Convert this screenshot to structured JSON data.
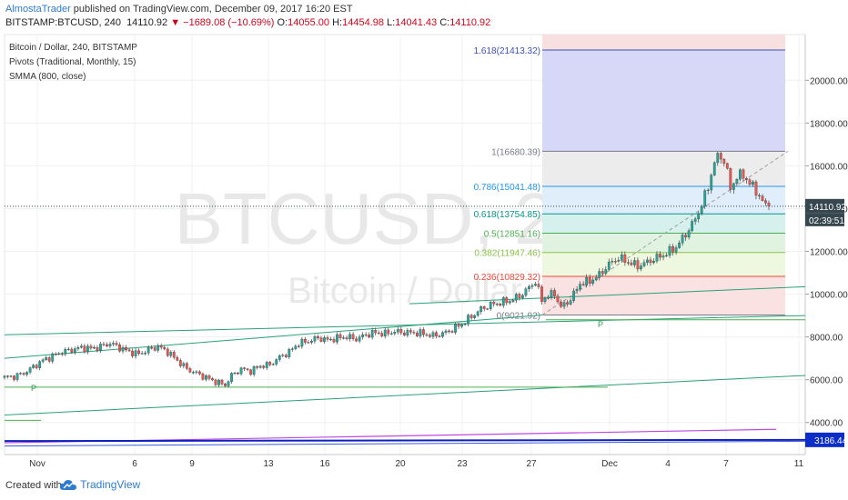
{
  "header": {
    "author": "AlmostaTrader",
    "published_text": " published on TradingView.com, December 09, 2017 16:20 EST",
    "symbol": "BITSTAMP:BTCUSD, 240",
    "last": "14110.92",
    "change": "▼ −1689.08 (−10.69%)",
    "o_label": "O:",
    "o_value": "14055.00",
    "h_label": "H:",
    "h_value": "14454.98",
    "l_label": "L:",
    "l_value": "14041.43",
    "c_label": "C:",
    "c_value": "14110.92"
  },
  "legend": {
    "title": "Bitcoin / Dollar, 240, BITSTAMP",
    "pivots": "Pivots (Traditional, Monthly, 15)",
    "smma": "SMMA (800, close)"
  },
  "watermark": {
    "symbol": "BTCUSD, 240",
    "name": "Bitcoin / Dollar"
  },
  "footer": {
    "created_with": "Created with",
    "brand": "TradingView"
  },
  "colors": {
    "up": "#26a69a",
    "down": "#ef5350",
    "fib_dashed": "#9e9e9e",
    "channel": "#2aa07a",
    "pivot": "#4caf50",
    "smma": "#c046e0",
    "blue_line": "#1020c0",
    "price_label_bg": "#37474f",
    "blue_label_bg": "#0d2dc9"
  },
  "price_labels": {
    "last": "14110.92",
    "countdown": "02:39:51",
    "blue": "3186.44"
  },
  "pivot_markers": [
    "P",
    "P"
  ],
  "chart_data": {
    "type": "candlestick",
    "y_axis": {
      "ticks": [
        4000,
        6000,
        8000,
        10000,
        12000,
        14000,
        16000,
        18000,
        20000
      ],
      "tick_labels": [
        "4000.00",
        "6000.00",
        "8000.00",
        "10000.00",
        "12000.00",
        "14000.00",
        "16000.00",
        "18000.00",
        "20000.00"
      ]
    },
    "x_axis": {
      "ticks": [
        "Nov",
        "6",
        "9",
        "13",
        "16",
        "20",
        "23",
        "27",
        "Dec",
        "4",
        "7",
        "11"
      ]
    },
    "fibonacci": [
      {
        "level": "1.618",
        "price": 21413.32,
        "label": "1.618(21413.32)",
        "color": "#3f51b5"
      },
      {
        "level": "1",
        "price": 16680.39,
        "label": "1(16680.39)",
        "color": "#787b86"
      },
      {
        "level": "0.786",
        "price": 15041.48,
        "label": "0.786(15041.48)",
        "color": "#2196f3"
      },
      {
        "level": "0.618",
        "price": 13754.85,
        "label": "0.618(13754.85)",
        "color": "#009688"
      },
      {
        "level": "0.5",
        "price": 12851.16,
        "label": "0.5(12851.16)",
        "color": "#4caf50"
      },
      {
        "level": "0.382",
        "price": 11947.46,
        "label": "0.382(11947.46)",
        "color": "#8bc34a"
      },
      {
        "level": "0.236",
        "price": 10829.32,
        "label": "0.236(10829.32)",
        "color": "#f44336"
      },
      {
        "level": "0",
        "price": 9021.92,
        "label": "0(9021.92)",
        "color": "#787b86"
      }
    ],
    "last_price": 14110.92,
    "close_path": [
      [
        0,
        6100
      ],
      [
        3,
        6150
      ],
      [
        6,
        6300
      ],
      [
        9,
        6600
      ],
      [
        12,
        6900
      ],
      [
        15,
        7100
      ],
      [
        18,
        7300
      ],
      [
        21,
        7400
      ],
      [
        24,
        7500
      ],
      [
        27,
        7450
      ],
      [
        30,
        7550
      ],
      [
        33,
        7700
      ],
      [
        36,
        7500
      ],
      [
        39,
        7300
      ],
      [
        42,
        7200
      ],
      [
        45,
        7400
      ],
      [
        48,
        7550
      ],
      [
        51,
        7300
      ],
      [
        54,
        6900
      ],
      [
        57,
        6500
      ],
      [
        60,
        6300
      ],
      [
        63,
        6100
      ],
      [
        66,
        5900
      ],
      [
        69,
        5750
      ],
      [
        71,
        6200
      ],
      [
        74,
        6500
      ],
      [
        77,
        6400
      ],
      [
        80,
        6650
      ],
      [
        83,
        6700
      ],
      [
        86,
        7050
      ],
      [
        89,
        7300
      ],
      [
        92,
        7700
      ],
      [
        95,
        7800
      ],
      [
        98,
        7950
      ],
      [
        101,
        7850
      ],
      [
        104,
        7950
      ],
      [
        107,
        8000
      ],
      [
        110,
        7900
      ],
      [
        113,
        8100
      ],
      [
        116,
        8200
      ],
      [
        119,
        8150
      ],
      [
        122,
        8250
      ],
      [
        125,
        8200
      ],
      [
        128,
        8200
      ],
      [
        131,
        8150
      ],
      [
        134,
        8050
      ],
      [
        137,
        8150
      ],
      [
        140,
        8350
      ],
      [
        143,
        8600
      ],
      [
        146,
        8950
      ],
      [
        149,
        9300
      ],
      [
        152,
        9500
      ],
      [
        155,
        9600
      ],
      [
        158,
        9700
      ],
      [
        161,
        9900
      ],
      [
        164,
        10300
      ],
      [
        166,
        10600
      ],
      [
        168,
        9700
      ],
      [
        170,
        9950
      ],
      [
        172,
        10000
      ],
      [
        174,
        9400
      ],
      [
        176,
        9600
      ],
      [
        178,
        10000
      ],
      [
        180,
        10500
      ],
      [
        183,
        10600
      ],
      [
        186,
        10900
      ],
      [
        189,
        11400
      ],
      [
        192,
        11700
      ],
      [
        195,
        11500
      ],
      [
        198,
        11300
      ],
      [
        201,
        11500
      ],
      [
        204,
        11700
      ],
      [
        207,
        11900
      ],
      [
        210,
        12200
      ],
      [
        213,
        12800
      ],
      [
        216,
        13500
      ],
      [
        218,
        14200
      ],
      [
        220,
        15000
      ],
      [
        222,
        16200
      ],
      [
        224,
        16500
      ],
      [
        226,
        15800
      ],
      [
        227,
        14800
      ],
      [
        228,
        15300
      ],
      [
        230,
        15600
      ],
      [
        232,
        15400
      ],
      [
        234,
        15000
      ],
      [
        236,
        14600
      ],
      [
        238,
        14110.92
      ]
    ]
  }
}
